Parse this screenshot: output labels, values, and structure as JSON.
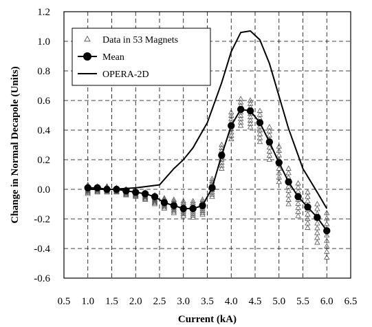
{
  "chart_data": {
    "type": "scatter",
    "xlabel": "Current (kA)",
    "ylabel": "Change in Normal Decapole (Units)",
    "xlim": [
      0.5,
      6.5
    ],
    "ylim": [
      -0.6,
      1.2
    ],
    "xticks": [
      "0.5",
      "1.0",
      "1.5",
      "2.0",
      "2.5",
      "3.0",
      "3.5",
      "4.0",
      "4.5",
      "5.0",
      "5.5",
      "6.0",
      "6.5"
    ],
    "yticks": [
      "-0.6",
      "-0.4",
      "-0.2",
      "0.0",
      "0.2",
      "0.4",
      "0.6",
      "0.8",
      "1.0",
      "1.2"
    ],
    "grid": true,
    "legend_position": "top-left",
    "series": [
      {
        "name": "Data in 53 Magnets",
        "marker": "open-triangle",
        "x": [
          1.0,
          1.2,
          1.4,
          1.6,
          1.8,
          2.0,
          2.2,
          2.4,
          2.6,
          2.8,
          3.0,
          3.2,
          3.4,
          3.6,
          3.8,
          4.0,
          4.2,
          4.4,
          4.6,
          4.8,
          5.0,
          5.2,
          5.4,
          5.6,
          5.8,
          6.0
        ],
        "y_min": [
          -0.03,
          -0.02,
          -0.02,
          -0.02,
          -0.04,
          -0.05,
          -0.07,
          -0.1,
          -0.13,
          -0.16,
          -0.18,
          -0.19,
          -0.17,
          -0.05,
          0.14,
          0.34,
          0.43,
          0.42,
          0.32,
          0.2,
          0.05,
          -0.1,
          -0.18,
          -0.26,
          -0.36,
          -0.46
        ],
        "y_max": [
          0.03,
          0.02,
          0.02,
          0.01,
          0.0,
          -0.01,
          -0.02,
          -0.04,
          -0.06,
          -0.07,
          -0.08,
          -0.08,
          -0.07,
          0.07,
          0.3,
          0.52,
          0.61,
          0.6,
          0.53,
          0.42,
          0.29,
          0.14,
          0.04,
          -0.02,
          -0.1,
          -0.16
        ]
      },
      {
        "name": "Mean",
        "marker": "filled-circle",
        "x": [
          1.0,
          1.2,
          1.4,
          1.6,
          1.8,
          2.0,
          2.2,
          2.4,
          2.6,
          2.8,
          3.0,
          3.2,
          3.4,
          3.6,
          3.8,
          4.0,
          4.2,
          4.4,
          4.6,
          4.8,
          5.0,
          5.2,
          5.4,
          5.6,
          5.8,
          6.0
        ],
        "y": [
          0.01,
          0.01,
          0.0,
          0.0,
          -0.01,
          -0.02,
          -0.03,
          -0.05,
          -0.09,
          -0.11,
          -0.13,
          -0.13,
          -0.11,
          0.01,
          0.23,
          0.43,
          0.54,
          0.53,
          0.45,
          0.32,
          0.18,
          0.05,
          -0.05,
          -0.12,
          -0.19,
          -0.28
        ]
      },
      {
        "name": "OPERA-2D",
        "marker": "line",
        "x": [
          1.0,
          1.5,
          2.0,
          2.5,
          2.8,
          3.0,
          3.2,
          3.5,
          3.8,
          4.0,
          4.2,
          4.4,
          4.6,
          4.8,
          5.0,
          5.2,
          5.5,
          5.8,
          6.0
        ],
        "y": [
          0.0,
          0.0,
          0.01,
          0.03,
          0.14,
          0.2,
          0.28,
          0.45,
          0.72,
          0.93,
          1.06,
          1.07,
          1.01,
          0.85,
          0.63,
          0.41,
          0.14,
          -0.02,
          -0.13
        ]
      }
    ]
  }
}
